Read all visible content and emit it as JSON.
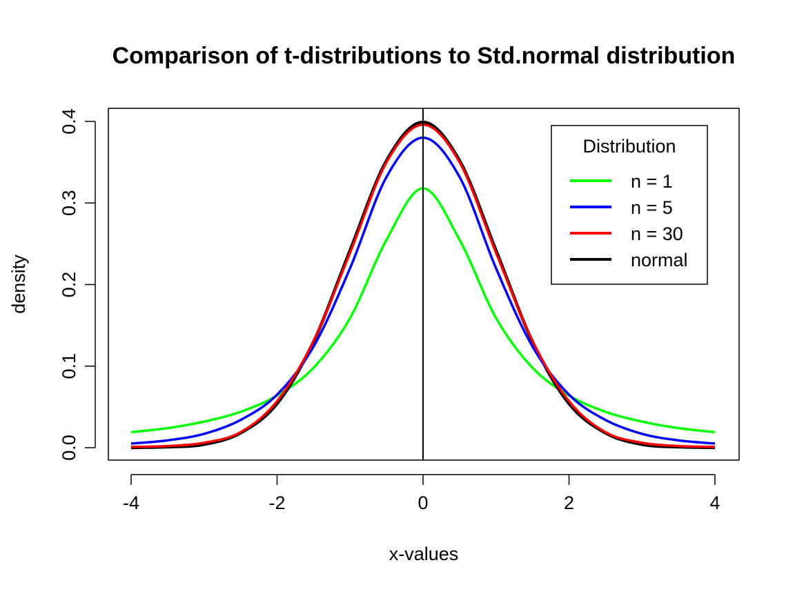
{
  "chart_data": {
    "type": "line",
    "title": "Comparison of t-distributions to Std.normal distribution",
    "xlabel": "x-values",
    "ylabel": "density",
    "xlim": [
      -4,
      4
    ],
    "ylim": [
      0,
      0.4
    ],
    "x_ticks": [
      -4,
      -2,
      0,
      2,
      4
    ],
    "y_ticks": [
      0.0,
      0.1,
      0.2,
      0.3,
      0.4
    ],
    "x_tick_labels": [
      "-4",
      "-2",
      "0",
      "2",
      "4"
    ],
    "y_tick_labels": [
      "0.0",
      "0.1",
      "0.2",
      "0.3",
      "0.4"
    ],
    "reference_line": {
      "x": 0,
      "color": "#000000"
    },
    "grid": false,
    "legend": {
      "title": "Distribution",
      "position": "top-right"
    },
    "x": [
      -4.0,
      -3.5,
      -3.0,
      -2.5,
      -2.0,
      -1.5,
      -1.0,
      -0.5,
      0.0,
      0.5,
      1.0,
      1.5,
      2.0,
      2.5,
      3.0,
      3.5,
      4.0
    ],
    "series": [
      {
        "name": "n = 1",
        "color": "#00ff00",
        "values": [
          0.019,
          0.024,
          0.032,
          0.044,
          0.064,
          0.098,
          0.159,
          0.255,
          0.318,
          0.255,
          0.159,
          0.098,
          0.064,
          0.044,
          0.032,
          0.024,
          0.019
        ]
      },
      {
        "name": "n = 5",
        "color": "#0000ff",
        "values": [
          0.005,
          0.009,
          0.017,
          0.034,
          0.065,
          0.124,
          0.22,
          0.332,
          0.38,
          0.332,
          0.22,
          0.124,
          0.065,
          0.034,
          0.017,
          0.009,
          0.005
        ]
      },
      {
        "name": "n = 30",
        "color": "#ff0000",
        "values": [
          0.001,
          0.002,
          0.006,
          0.019,
          0.057,
          0.131,
          0.239,
          0.35,
          0.396,
          0.35,
          0.239,
          0.131,
          0.057,
          0.019,
          0.006,
          0.002,
          0.001
        ]
      },
      {
        "name": "normal",
        "color": "#000000",
        "values": [
          0.0001,
          0.0009,
          0.004,
          0.018,
          0.054,
          0.13,
          0.242,
          0.352,
          0.399,
          0.352,
          0.242,
          0.13,
          0.054,
          0.018,
          0.004,
          0.0009,
          0.0001
        ]
      }
    ]
  }
}
